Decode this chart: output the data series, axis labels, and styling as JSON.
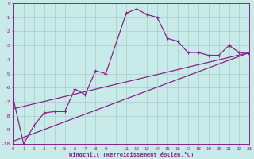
{
  "bg_color": "#c8eae8",
  "grid_color": "#aaccc8",
  "line_color": "#882288",
  "xlim": [
    0,
    23
  ],
  "ylim": [
    -10,
    0
  ],
  "series_x": [
    0,
    1,
    2,
    3,
    4,
    5,
    6,
    7,
    8,
    9,
    11,
    12,
    13,
    14,
    15,
    16,
    17,
    18,
    19,
    20,
    21,
    22,
    23
  ],
  "series_y": [
    -6.8,
    -10.0,
    -8.7,
    -7.8,
    -7.7,
    -7.7,
    -6.1,
    -6.5,
    -4.8,
    -5.0,
    -0.7,
    -0.4,
    -0.8,
    -1.0,
    -2.5,
    -2.7,
    -3.5,
    -3.5,
    -3.7,
    -3.7,
    -3.0,
    -3.5,
    -3.6
  ],
  "line1_x": [
    0,
    23
  ],
  "line1_y": [
    -7.5,
    -3.5
  ],
  "line2_x": [
    0,
    23
  ],
  "line2_y": [
    -9.8,
    -3.5
  ],
  "xlabel": "Windchill (Refroidissement éolien,°C)"
}
